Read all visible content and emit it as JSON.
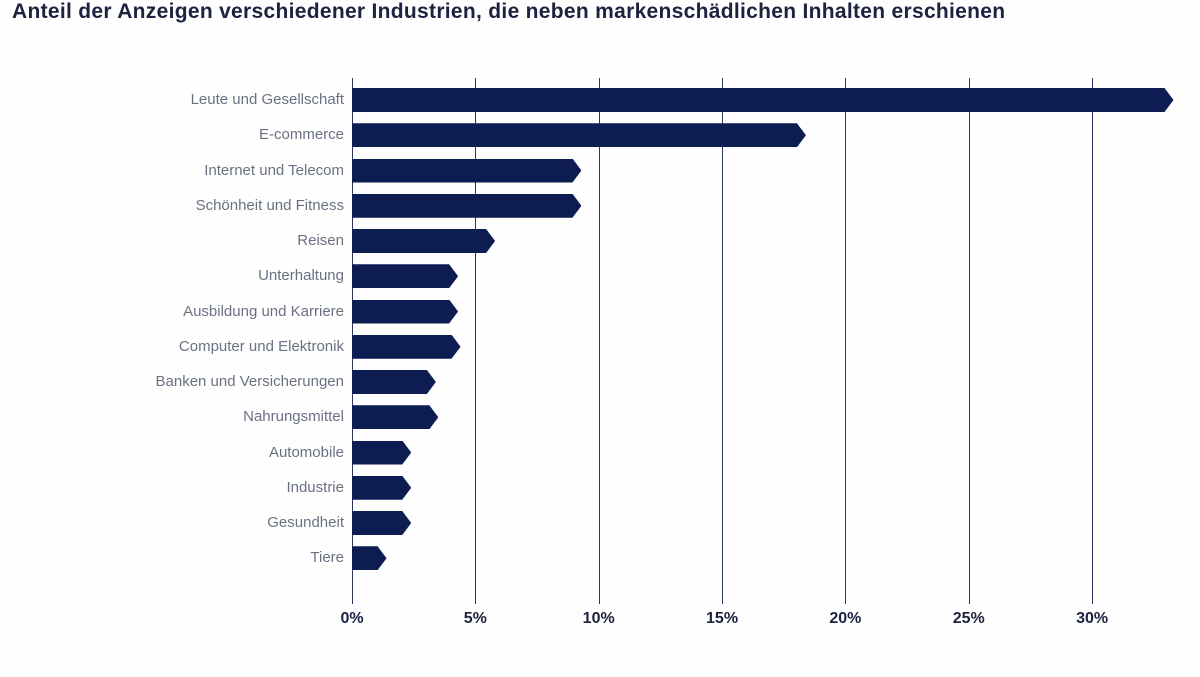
{
  "title": "Anteil der Anzeigen verschiedener Industrien, die neben markenschädlichen Inhalten erschienen",
  "colors": {
    "bar": "#0d1d52",
    "gridline": "#2a3860",
    "title_text": "#1c2240",
    "category_label_text": "#6a7183",
    "tick_label_text": "#1c2240",
    "background": "#fefefe"
  },
  "chart_data": {
    "type": "bar",
    "orientation": "horizontal",
    "title": "Anteil der Anzeigen verschiedener Industrien, die neben markenschädlichen Inhalten erschienen",
    "categories": [
      "Leute und Gesellschaft",
      "E-commerce",
      "Internet und Telecom",
      "Schönheit und Fitness",
      "Reisen",
      "Unterhaltung",
      "Ausbildung und Karriere",
      "Computer und Elektronik",
      "Banken und Versicherungen",
      "Nahrungsmittel",
      "Automobile",
      "Industrie",
      "Gesundheit",
      "Tiere"
    ],
    "values": [
      33.3,
      18.4,
      9.3,
      9.3,
      5.8,
      4.3,
      4.3,
      4.4,
      3.4,
      3.5,
      2.4,
      2.4,
      2.4,
      1.4
    ],
    "unit": "%",
    "x_ticks": [
      {
        "value": 0,
        "label": "0%"
      },
      {
        "value": 5,
        "label": "5%"
      },
      {
        "value": 10,
        "label": "10%"
      },
      {
        "value": 15,
        "label": "15%"
      },
      {
        "value": 20,
        "label": "20%"
      },
      {
        "value": 25,
        "label": "25%"
      },
      {
        "value": 30,
        "label": "30%"
      }
    ],
    "xlim": [
      0,
      34
    ],
    "xlabel": "",
    "ylabel": "",
    "grid": "vertical",
    "legend": "none",
    "bar_tip_style": "pointed"
  }
}
